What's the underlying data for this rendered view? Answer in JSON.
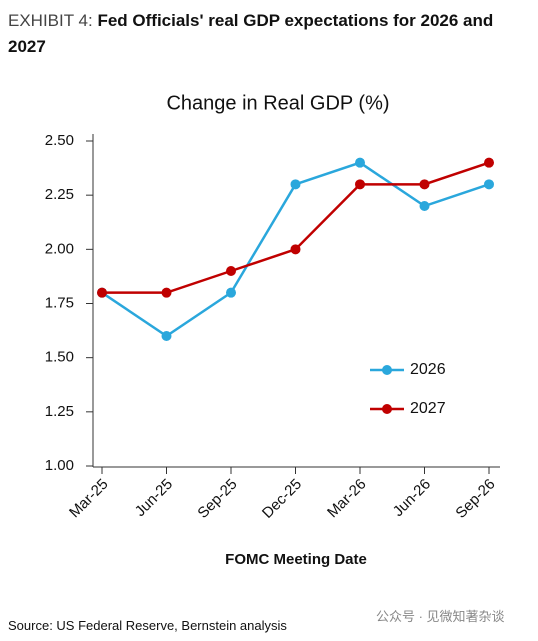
{
  "exhibit": "EXHIBIT 4:",
  "headline": "Fed Officials' real GDP expectations for 2026 and 2027",
  "source": "Source: US Federal Reserve, Bernstein analysis",
  "watermark": "公众号 · 见微知著杂谈",
  "chart_data": {
    "type": "line",
    "title": "Change in Real GDP (%)",
    "x_label": "FOMC Meeting Date",
    "categories": [
      "Mar-25",
      "Jun-25",
      "Sep-25",
      "Dec-25",
      "Mar-26",
      "Jun-26",
      "Sep-26"
    ],
    "series": [
      {
        "name": "2026",
        "color": "#2aa7dc",
        "values": [
          1.8,
          1.6,
          1.8,
          2.3,
          2.4,
          2.2,
          2.3
        ]
      },
      {
        "name": "2027",
        "color": "#c00000",
        "values": [
          1.8,
          1.8,
          1.9,
          2.0,
          2.3,
          2.3,
          2.4
        ]
      }
    ],
    "ylim": [
      1.0,
      2.5
    ],
    "yticks": [
      {
        "value": 1,
        "label": "1.00"
      },
      {
        "value": 1.25,
        "label": "1.25"
      },
      {
        "value": 1.5,
        "label": "1.50"
      },
      {
        "value": 1.75,
        "label": "1.75"
      },
      {
        "value": 2,
        "label": "2.00"
      },
      {
        "value": 2.25,
        "label": "2.25"
      },
      {
        "value": 2.5,
        "label": "2.50"
      }
    ],
    "grid": false,
    "legend": "lower right"
  }
}
